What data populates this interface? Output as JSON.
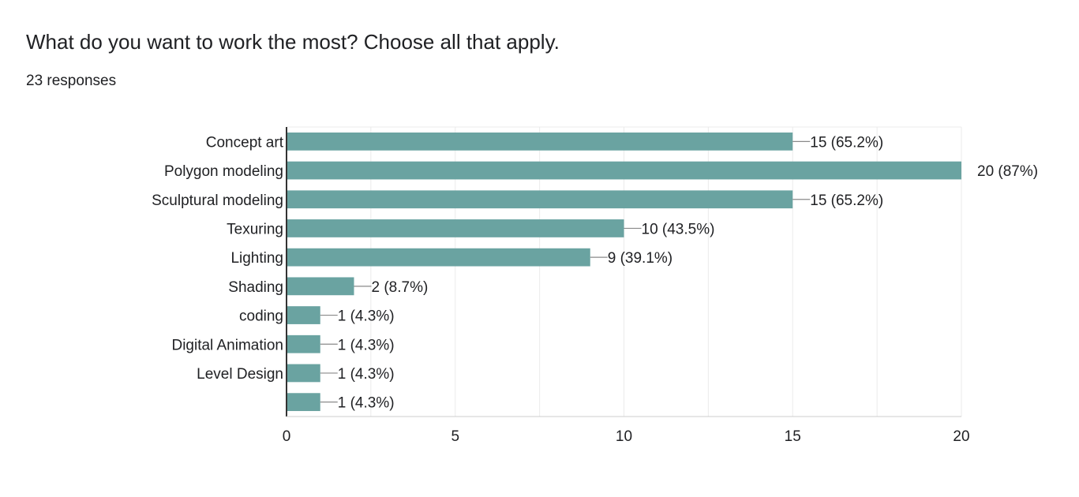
{
  "question": "What do you want to work the most? Choose all that apply.",
  "response_count": "23 responses",
  "colors": {
    "bar": "#6aa3a1",
    "grid": "#ebebeb",
    "axis": "#333333",
    "leader": "#8a8a8a"
  },
  "chart_data": {
    "type": "bar",
    "orientation": "horizontal",
    "title": "",
    "xlabel": "",
    "ylabel": "",
    "xlim": [
      0,
      20
    ],
    "xticks": [
      0,
      5,
      10,
      15,
      20
    ],
    "grid": true,
    "categories": [
      "Concept art",
      "Polygon modeling",
      "Sculptural modeling",
      "Texuring",
      "Lighting",
      "Shading",
      "coding",
      "Digital Animation",
      "Level Design",
      ""
    ],
    "values": [
      15,
      20,
      15,
      10,
      9,
      2,
      1,
      1,
      1,
      1
    ],
    "data_labels": [
      "15 (65.2%)",
      "20 (87%)",
      "15 (65.2%)",
      "10 (43.5%)",
      "9 (39.1%)",
      "2 (8.7%)",
      "1 (4.3%)",
      "1 (4.3%)",
      "1 (4.3%)",
      "1 (4.3%)"
    ]
  }
}
